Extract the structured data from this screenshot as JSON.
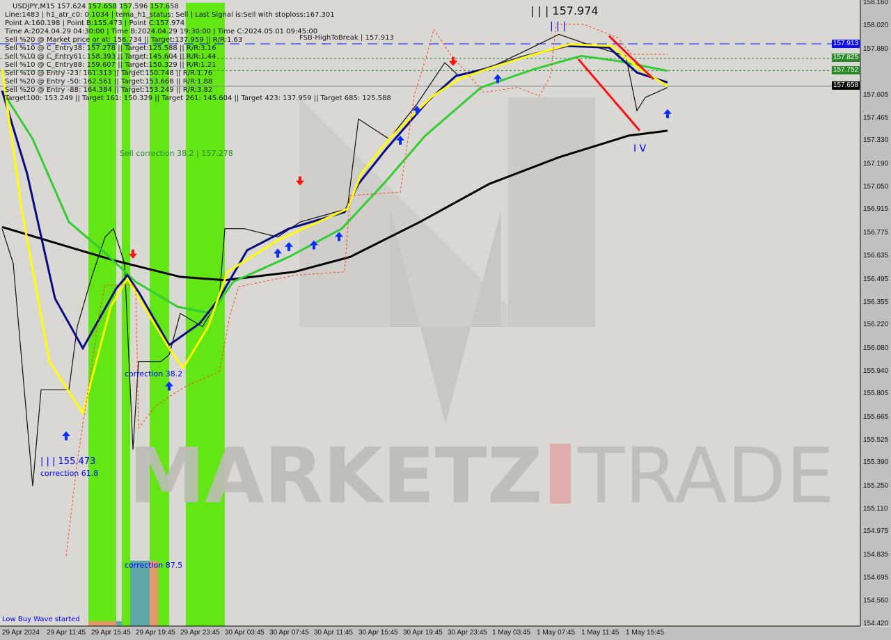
{
  "header": {
    "symbol_line": "USDJPY,M15  157.624 157.658 157.596 157.658",
    "lines": [
      "Line:1483 | h1_atr_c0: 0.1034 | tema_h1_status: Sell | Last Signal is:Sell with stoploss:167.301",
      "Point A:160.198 | Point B:155.473 | Point C:157.974",
      "Time A:2024.04.29 04:30:00 | Time B:2024.04.29 19:30:00 | Time C:2024.05.01 09:45:00",
      "Sell %20 @ Market price or at: 156.734 || Target:137.959 || R/R:1.63",
      "Sell %10 @ C_Entry38: 157.278 || Target:125.588 || R/R:3.16",
      "Sell %10 @ C_Entry61: 158.393 || Target:145.604 || R/R:1.44",
      "Sell %10 @ C_Entry88: 159.607 || Target:150.329 || R/R:1.21",
      "Sell %10 @ Entry -23: 161.313 || Target:150.748 || R/R:1.76",
      "Sell %20 @ Entry -50: 162.561 || Target:153.668 || R/R:1.88",
      "Sell %20 @ Entry -88: 164.384 || Target:153.249 || R/R:3.82",
      "Target100: 153.249 || Target 161: 150.329 || Target 261: 145.604 || Target 423: 137.959 || Target 685: 125.588"
    ]
  },
  "annotations": {
    "fsb": "FSB-HighToBreak | 157.913",
    "sell_correction": "Sell correction 38.2 | 157.278",
    "correction_382": "correction 38.2",
    "point_b": "| | | 155.473",
    "correction_618": "correction 61.8",
    "correction_875": "correction 87.5",
    "point_c": "| | | 157.974",
    "wave_iii": "| | |",
    "wave_iv": "I V",
    "low_buy": "Low Buy Wave started"
  },
  "watermark": {
    "text_a": "MARKETZ",
    "text_b": "TRADE"
  },
  "price_tags": [
    {
      "value": "157.913",
      "color": "#0a0aff"
    },
    {
      "value": "157.825",
      "color": "#2a8a2a"
    },
    {
      "value": "157.752",
      "color": "#2a8a2a"
    },
    {
      "value": "157.658",
      "color": "#000000"
    }
  ],
  "chart_data": {
    "type": "line",
    "title": "USDJPY,M15",
    "ylim": [
      154.42,
      158.16
    ],
    "y_ticks": [
      "158.160",
      "158.020",
      "157.880",
      "157.605",
      "157.465",
      "157.330",
      "157.190",
      "157.050",
      "156.915",
      "156.775",
      "156.635",
      "156.495",
      "156.355",
      "156.220",
      "156.080",
      "155.940",
      "155.805",
      "155.665",
      "155.525",
      "155.390",
      "155.250",
      "155.110",
      "154.975",
      "154.835",
      "154.695",
      "154.560",
      "154.420"
    ],
    "x_ticks": [
      "29 Apr 2024",
      "29 Apr 11:45",
      "29 Apr 15:45",
      "29 Apr 19:45",
      "29 Apr 23:45",
      "30 Apr 03:45",
      "30 Apr 07:45",
      "30 Apr 11:45",
      "30 Apr 15:45",
      "30 Apr 19:45",
      "30 Apr 23:45",
      "1 May 03:45",
      "1 May 07:45",
      "1 May 11:45",
      "1 May 15:45"
    ],
    "hlines": [
      {
        "price": 157.913,
        "color": "#0a0aff",
        "style": "dashed"
      },
      {
        "price": 157.825,
        "color": "#2a8a2a",
        "style": "dotted"
      },
      {
        "price": 157.752,
        "color": "#2a8a2a",
        "style": "dotted"
      },
      {
        "price": 157.658,
        "color": "#808890",
        "style": "solid"
      }
    ],
    "series": [
      {
        "id": "price",
        "color": "#111111",
        "points": [
          [
            "2024-04-29 07:45",
            156.8
          ],
          [
            "2024-04-29 08:45",
            156.59
          ],
          [
            "2024-04-29 10:30",
            155.25
          ],
          [
            "2024-04-29 11:15",
            155.83
          ],
          [
            "2024-04-29 13:45",
            155.83
          ],
          [
            "2024-04-29 14:30",
            156.21
          ],
          [
            "2024-04-29 15:45",
            156.5
          ],
          [
            "2024-04-29 17:00",
            156.75
          ],
          [
            "2024-04-29 17:45",
            156.8
          ],
          [
            "2024-04-29 18:45",
            156.59
          ],
          [
            "2024-04-29 19:30",
            155.47
          ],
          [
            "2024-04-29 20:00",
            156.0
          ],
          [
            "2024-04-29 22:00",
            156.0
          ],
          [
            "2024-04-29 22:45",
            156.04
          ],
          [
            "2024-04-29 23:45",
            156.29
          ],
          [
            "2024-04-30 01:45",
            156.21
          ],
          [
            "2024-04-30 03:15",
            156.38
          ],
          [
            "2024-04-30 03:45",
            156.8
          ],
          [
            "2024-04-30 05:30",
            156.8
          ],
          [
            "2024-04-30 08:30",
            156.75
          ],
          [
            "2024-04-30 10:30",
            156.84
          ],
          [
            "2024-04-30 14:45",
            156.92
          ],
          [
            "2024-04-30 15:45",
            157.46
          ],
          [
            "2024-04-30 18:30",
            157.34
          ],
          [
            "2024-04-30 21:00",
            157.55
          ],
          [
            "2024-04-30 23:30",
            157.8
          ],
          [
            "2024-05-01 00:45",
            157.72
          ],
          [
            "2024-05-01 03:15",
            157.76
          ],
          [
            "2024-05-01 07:00",
            157.88
          ],
          [
            "2024-05-01 09:45",
            157.97
          ],
          [
            "2024-05-01 12:45",
            157.9
          ],
          [
            "2024-05-01 15:45",
            157.84
          ],
          [
            "2024-05-01 16:45",
            157.51
          ],
          [
            "2024-05-01 17:30",
            157.59
          ],
          [
            "2024-05-01 19:30",
            157.65
          ]
        ]
      },
      {
        "id": "ma-black",
        "color": "#000000",
        "points": [
          [
            "2024-04-29 07:45",
            156.81
          ],
          [
            "2024-04-29 17:45",
            156.61
          ],
          [
            "2024-04-29 23:45",
            156.51
          ],
          [
            "2024-04-30 03:45",
            156.49
          ],
          [
            "2024-04-30 10:00",
            156.54
          ],
          [
            "2024-04-30 15:00",
            156.63
          ],
          [
            "2024-04-30 21:15",
            156.84
          ],
          [
            "2024-05-01 03:30",
            157.07
          ],
          [
            "2024-05-01 09:45",
            157.23
          ],
          [
            "2024-05-01 16:00",
            157.36
          ],
          [
            "2024-05-01 19:30",
            157.39
          ]
        ]
      },
      {
        "id": "ma-green",
        "color": "#33cc33",
        "points": [
          [
            "2024-04-29 07:45",
            157.63
          ],
          [
            "2024-04-29 10:30",
            157.34
          ],
          [
            "2024-04-29 13:45",
            156.84
          ],
          [
            "2024-04-29 16:45",
            156.67
          ],
          [
            "2024-04-29 19:45",
            156.48
          ],
          [
            "2024-04-29 23:30",
            156.33
          ],
          [
            "2024-04-30 02:30",
            156.29
          ],
          [
            "2024-04-30 04:30",
            156.48
          ],
          [
            "2024-04-30 09:30",
            156.63
          ],
          [
            "2024-04-30 14:15",
            156.8
          ],
          [
            "2024-04-30 18:00",
            157.07
          ],
          [
            "2024-04-30 21:45",
            157.36
          ],
          [
            "2024-05-01 02:45",
            157.65
          ],
          [
            "2024-05-01 07:30",
            157.76
          ],
          [
            "2024-05-01 11:45",
            157.84
          ],
          [
            "2024-05-01 15:00",
            157.81
          ],
          [
            "2024-05-01 19:30",
            157.75
          ]
        ]
      },
      {
        "id": "ma-navy",
        "color": "#0a0a80",
        "points": [
          [
            "2024-04-29 07:45",
            157.63
          ],
          [
            "2024-04-29 10:00",
            157.13
          ],
          [
            "2024-04-29 12:30",
            156.38
          ],
          [
            "2024-04-29 15:00",
            156.08
          ],
          [
            "2024-04-29 18:00",
            156.44
          ],
          [
            "2024-04-29 19:00",
            156.52
          ],
          [
            "2024-04-29 20:00",
            156.42
          ],
          [
            "2024-04-29 22:45",
            156.1
          ],
          [
            "2024-04-30 01:30",
            156.23
          ],
          [
            "2024-04-30 03:15",
            156.38
          ],
          [
            "2024-04-30 05:45",
            156.67
          ],
          [
            "2024-04-30 09:30",
            156.8
          ],
          [
            "2024-04-30 14:30",
            156.9
          ],
          [
            "2024-04-30 15:45",
            157.07
          ],
          [
            "2024-04-30 18:15",
            157.28
          ],
          [
            "2024-04-30 22:00",
            157.57
          ],
          [
            "2024-05-01 00:30",
            157.72
          ],
          [
            "2024-05-01 03:00",
            157.76
          ],
          [
            "2024-05-01 06:45",
            157.84
          ],
          [
            "2024-05-01 10:30",
            157.9
          ],
          [
            "2024-05-01 14:15",
            157.89
          ],
          [
            "2024-05-01 16:45",
            157.74
          ],
          [
            "2024-05-01 19:30",
            157.68
          ]
        ]
      },
      {
        "id": "ma-yellow",
        "color": "#ffff00",
        "points": [
          [
            "2024-04-29 07:45",
            157.76
          ],
          [
            "2024-04-29 09:30",
            156.92
          ],
          [
            "2024-04-29 12:00",
            156.0
          ],
          [
            "2024-04-29 15:00",
            155.69
          ],
          [
            "2024-04-29 17:30",
            156.33
          ],
          [
            "2024-04-29 19:00",
            156.5
          ],
          [
            "2024-04-29 20:30",
            156.33
          ],
          [
            "2024-04-29 22:45",
            156.08
          ],
          [
            "2024-04-30 00:00",
            155.96
          ],
          [
            "2024-04-30 02:15",
            156.21
          ],
          [
            "2024-04-30 04:00",
            156.54
          ],
          [
            "2024-04-30 08:30",
            156.73
          ],
          [
            "2024-04-30 14:45",
            156.92
          ],
          [
            "2024-04-30 16:00",
            157.13
          ],
          [
            "2024-04-30 18:30",
            157.34
          ],
          [
            "2024-04-30 22:15",
            157.59
          ],
          [
            "2024-05-01 00:45",
            157.7
          ],
          [
            "2024-05-01 03:15",
            157.76
          ],
          [
            "2024-05-01 07:00",
            157.84
          ],
          [
            "2024-05-01 10:45",
            157.91
          ],
          [
            "2024-05-01 14:30",
            157.9
          ],
          [
            "2024-05-01 17:00",
            157.76
          ],
          [
            "2024-05-01 19:30",
            157.66
          ]
        ]
      },
      {
        "id": "stop-orange",
        "color": "#ff4010",
        "dashed": true,
        "points": [
          [
            "2024-04-29 13:30",
            154.83
          ],
          [
            "2024-04-29 14:30",
            155.4
          ],
          [
            "2024-04-29 15:45",
            155.95
          ],
          [
            "2024-04-29 16:30",
            156.3
          ],
          [
            "2024-04-29 17:00",
            156.46
          ],
          [
            "2024-04-29 19:45",
            156.46
          ],
          [
            "2024-04-29 20:00",
            155.6
          ],
          [
            "2024-04-29 21:30",
            155.73
          ],
          [
            "2024-04-29 23:00",
            155.8
          ],
          [
            "2024-04-30 00:15",
            155.85
          ],
          [
            "2024-04-30 03:15",
            155.94
          ],
          [
            "2024-04-30 04:15",
            156.29
          ],
          [
            "2024-04-30 05:00",
            156.45
          ],
          [
            "2024-04-30 10:00",
            156.52
          ],
          [
            "2024-04-30 14:30",
            156.54
          ],
          [
            "2024-04-30 15:00",
            157.0
          ],
          [
            "2024-04-30 19:30",
            157.02
          ],
          [
            "2024-04-30 20:45",
            157.6
          ],
          [
            "2024-04-30 22:00",
            157.87
          ],
          [
            "2024-04-30 22:30",
            158.0
          ],
          [
            "2024-05-01 00:00",
            157.85
          ],
          [
            "2024-05-01 03:00",
            157.62
          ],
          [
            "2024-05-01 06:00",
            157.65
          ],
          [
            "2024-05-01 08:00",
            157.6
          ],
          [
            "2024-05-01 09:00",
            157.72
          ],
          [
            "2024-05-01 09:30",
            158.03
          ],
          [
            "2024-05-01 12:00",
            158.03
          ],
          [
            "2024-05-01 15:00",
            157.95
          ],
          [
            "2024-05-01 16:15",
            157.85
          ],
          [
            "2024-05-01 19:30",
            157.85
          ]
        ]
      }
    ],
    "wave_lines": [
      {
        "color": "#ff1010",
        "points": [
          [
            "2024-05-01 11:30",
            157.82
          ],
          [
            "2024-05-01 17:00",
            157.39
          ]
        ]
      },
      {
        "color": "#ff1010",
        "points": [
          [
            "2024-05-01 14:15",
            157.96
          ],
          [
            "2024-05-01 18:15",
            157.7
          ]
        ]
      }
    ],
    "signals": [
      {
        "type": "buy",
        "time": "2024-04-29 13:30",
        "price": 155.58
      },
      {
        "type": "sell",
        "time": "2024-04-29 19:30",
        "price": 156.62
      },
      {
        "type": "buy",
        "time": "2024-04-29 22:45",
        "price": 155.88
      },
      {
        "type": "buy",
        "time": "2024-04-30 08:30",
        "price": 156.68
      },
      {
        "type": "buy",
        "time": "2024-04-30 09:30",
        "price": 156.72
      },
      {
        "type": "sell",
        "time": "2024-04-30 10:30",
        "price": 157.06
      },
      {
        "type": "buy",
        "time": "2024-04-30 11:45",
        "price": 156.73
      },
      {
        "type": "buy",
        "time": "2024-04-30 14:00",
        "price": 156.78
      },
      {
        "type": "buy",
        "time": "2024-04-30 19:30",
        "price": 157.36
      },
      {
        "type": "buy",
        "time": "2024-04-30 21:00",
        "price": 157.54
      },
      {
        "type": "sell",
        "time": "2024-05-01 00:15",
        "price": 157.78
      },
      {
        "type": "buy",
        "time": "2024-05-01 04:15",
        "price": 157.73
      },
      {
        "type": "buy",
        "time": "2024-05-01 19:30",
        "price": 157.52
      }
    ]
  }
}
